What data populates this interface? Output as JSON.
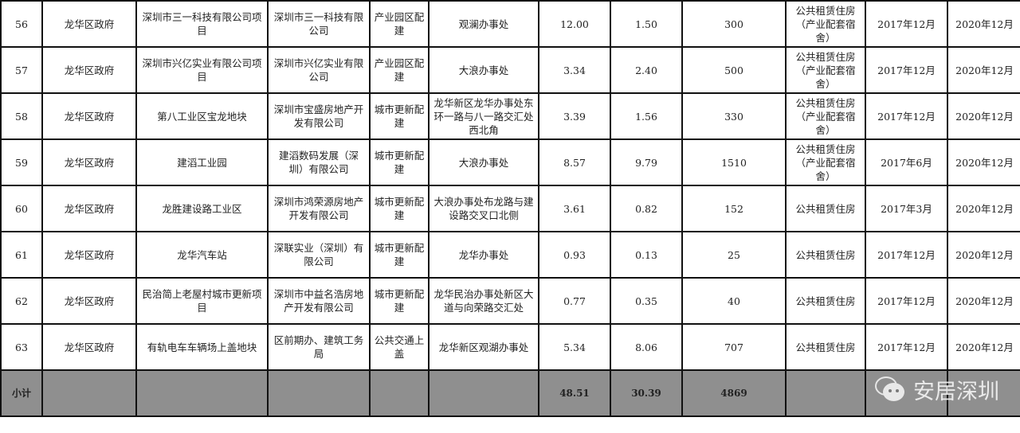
{
  "table": {
    "rows": [
      [
        "56",
        "龙华区政府",
        "深圳市三一科技有限公司项\n目",
        "深圳市三一科技有限\n公司",
        "产业园区配\n建",
        "观澜办事处",
        "12.00",
        "1.50",
        "300",
        "公共租赁住房\n（产业配套宿\n舍）",
        "2017年12月",
        "2020年12月"
      ],
      [
        "57",
        "龙华区政府",
        "深圳市兴亿实业有限公司项\n目",
        "深圳市兴亿实业有限\n公司",
        "产业园区配\n建",
        "大浪办事处",
        "3.34",
        "2.40",
        "500",
        "公共租赁住房\n（产业配套宿\n舍）",
        "2017年12月",
        "2020年12月"
      ],
      [
        "58",
        "龙华区政府",
        "第八工业区宝龙地块",
        "深圳市宝盛房地产开\n发有限公司",
        "城市更新配\n建",
        "龙华新区龙华办事处东\n环一路与八一路交汇处\n西北角",
        "3.39",
        "1.56",
        "330",
        "公共租赁住房\n（产业配套宿\n舍）",
        "2017年12月",
        "2020年12月"
      ],
      [
        "59",
        "龙华区政府",
        "建滔工业园",
        "建滔数码发展（深\n圳）有限公司",
        "城市更新配\n建",
        "大浪办事处",
        "8.57",
        "9.79",
        "1510",
        "公共租赁住房\n（产业配套宿\n舍）",
        "2017年6月",
        "2020年12月"
      ],
      [
        "60",
        "龙华区政府",
        "龙胜建设路工业区",
        "深圳市鸿荣源房地产\n开发有限公司",
        "城市更新配\n建",
        "大浪办事处布龙路与建\n设路交叉口北侧",
        "3.61",
        "0.82",
        "152",
        "公共租赁住房",
        "2017年3月",
        "2020年12月"
      ],
      [
        "61",
        "龙华区政府",
        "龙华汽车站",
        "深联实业（深圳）有\n限公司",
        "城市更新配\n建",
        "龙华办事处",
        "0.93",
        "0.13",
        "25",
        "公共租赁住房",
        "2017年12月",
        "2020年12月"
      ],
      [
        "62",
        "龙华区政府",
        "民治简上老屋村城市更新项\n目",
        "深圳市中益名浩房地\n产开发有限公司",
        "城市更新配\n建",
        "龙华民治办事处新区大\n道与向荣路交汇处",
        "0.77",
        "0.35",
        "40",
        "公共租赁住房",
        "2017年12月",
        "2020年12月"
      ],
      [
        "63",
        "龙华区政府",
        "有轨电车车辆场上盖地块",
        "区前期办、建筑工务\n局",
        "公共交通上\n盖",
        "龙华新区观湖办事处",
        "5.34",
        "8.06",
        "707",
        "公共租赁住房",
        "2017年12月",
        "2020年12月"
      ]
    ],
    "subtotal": [
      "小计",
      "",
      "",
      "",
      "",
      "",
      "48.51",
      "30.39",
      "4869",
      "",
      "",
      ""
    ]
  },
  "watermark": {
    "text": "安居深圳",
    "icon": "wechat-icon"
  },
  "colors": {
    "subtotal_bg": "#8f8f8f",
    "border": "#111111"
  }
}
